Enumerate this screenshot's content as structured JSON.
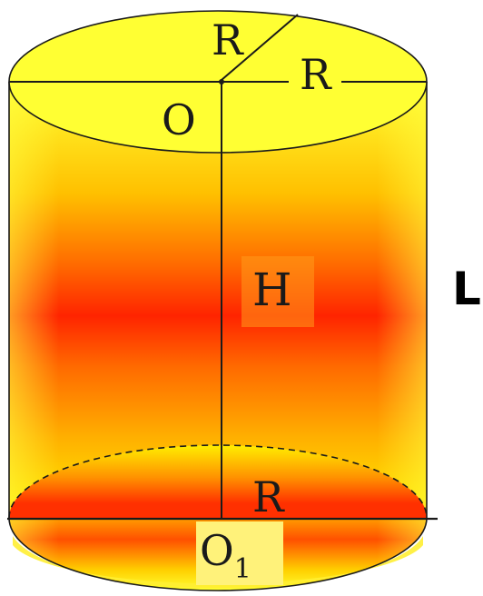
{
  "labels": {
    "radius_diagonal": "R",
    "radius_top": "R",
    "center_top": "O",
    "height": "H",
    "generatrix": "L",
    "radius_bottom": "R",
    "center_bottom": "O",
    "center_bottom_subscript": "1"
  },
  "colors": {
    "outline": "#1a1a1a",
    "body_light": "#ffff33",
    "body_mid": "#ffa000",
    "body_dark": "#ff2000",
    "label_background": "#fff066"
  }
}
